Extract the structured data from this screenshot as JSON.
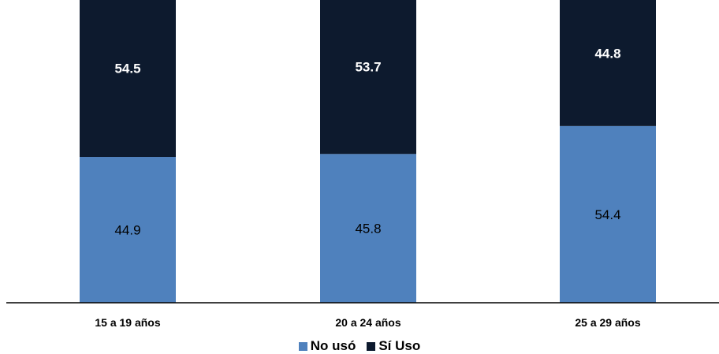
{
  "chart_data": {
    "type": "bar",
    "stacked": true,
    "categories": [
      "15 a 19 años",
      "20 a 24 años",
      "25 a 29 años"
    ],
    "series": [
      {
        "name": "No usó",
        "values": [
          44.9,
          45.8,
          54.4
        ],
        "color": "#4f81bd",
        "label_color": "#000000",
        "label_bold": false
      },
      {
        "name": "Sí Uso",
        "values": [
          54.5,
          53.7,
          44.8
        ],
        "color": "#0d1a2e",
        "label_color": "#ffffff",
        "label_bold": true
      }
    ],
    "ylim": [
      0,
      100
    ],
    "grid": false,
    "legend_position": "bottom"
  }
}
